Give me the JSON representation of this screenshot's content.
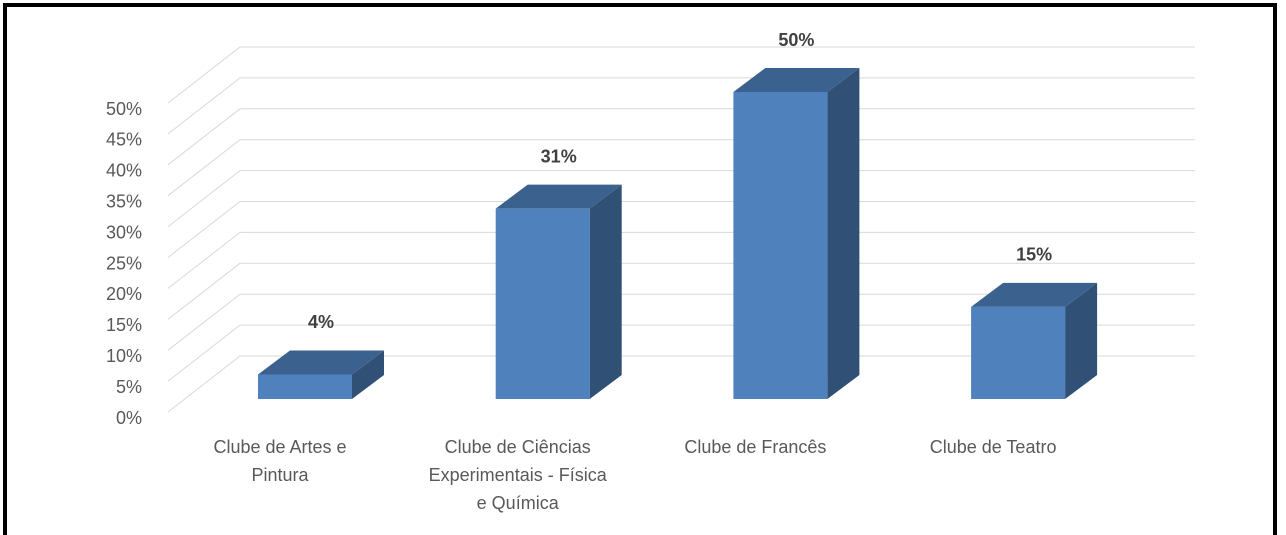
{
  "chart_data": {
    "type": "bar3d",
    "categories": [
      "Clube de Artes e Pintura",
      "Clube de Ciências Experimentais - Física e Química",
      "Clube de Francês",
      "Clube de Teatro"
    ],
    "values": [
      4,
      31,
      50,
      15
    ],
    "value_labels": [
      "4%",
      "31%",
      "50%",
      "15%"
    ],
    "color": "#4f81bd",
    "ylim": [
      0,
      50
    ],
    "yticks": [
      {
        "value": 0,
        "label": "0%"
      },
      {
        "value": 5,
        "label": "5%"
      },
      {
        "value": 10,
        "label": "10%"
      },
      {
        "value": 15,
        "label": "15%"
      },
      {
        "value": 20,
        "label": "20%"
      },
      {
        "value": 25,
        "label": "25%"
      },
      {
        "value": 30,
        "label": "30%"
      },
      {
        "value": 35,
        "label": "35%"
      },
      {
        "value": 40,
        "label": "40%"
      },
      {
        "value": 45,
        "label": "45%"
      },
      {
        "value": 50,
        "label": "50%"
      }
    ],
    "grid": true
  }
}
